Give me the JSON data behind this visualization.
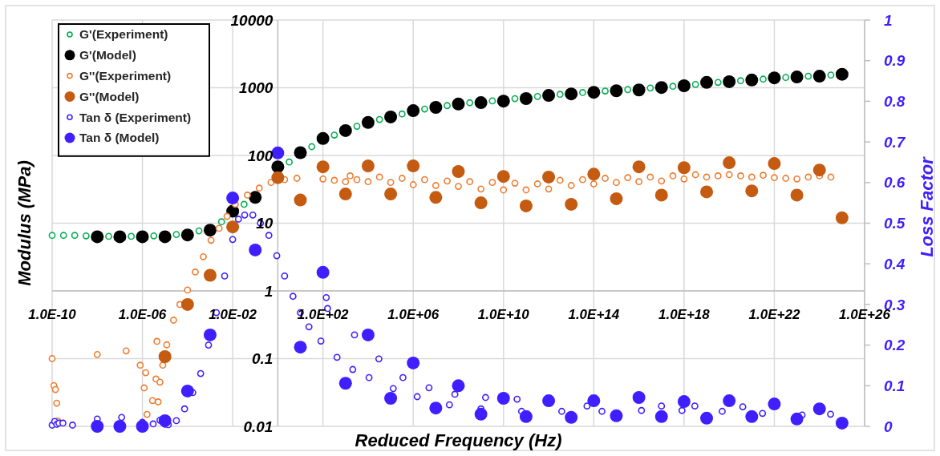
{
  "chart_data": {
    "type": "scatter",
    "xlabel": "Reduced Frequency (Hz)",
    "ylabel": "Modulus (MPa)",
    "y2label": "Loss Factor",
    "log": "xy",
    "grid": true,
    "legend": "top left",
    "marker": "circle",
    "xlim": [
      1e-10,
      1e+26
    ],
    "xticks": [
      {
        "value": 1e-10,
        "label": "1.0E-10"
      },
      {
        "value": 1e-06,
        "label": "1.0E-06"
      },
      {
        "value": 0.01,
        "label": "1.0E-02"
      },
      {
        "value": 100.0,
        "label": "1.0E+02"
      },
      {
        "value": 1000000.0,
        "label": "1.0E+06"
      },
      {
        "value": 10000000000.0,
        "label": "1.0E+10"
      },
      {
        "value": 100000000000000.0,
        "label": "1.0E+14"
      },
      {
        "value": 1e+18,
        "label": "1.0E+18"
      },
      {
        "value": 1e+22,
        "label": "1.0E+22"
      },
      {
        "value": 1e+26,
        "label": "1.0E+26"
      }
    ],
    "ylim": [
      0.01,
      10000
    ],
    "yticks": [
      0.01,
      0.1,
      1,
      10,
      100,
      1000,
      10000
    ],
    "y2lim": [
      0,
      1
    ],
    "y2ticks": [
      0,
      0.1,
      0.2,
      0.3,
      0.4,
      0.5,
      0.6,
      0.7,
      0.8,
      0.9,
      1
    ],
    "series": [
      {
        "name": "G'(Experiment)",
        "color": "#00b050",
        "x": [
          1e-10,
          3.2e-10,
          1e-09,
          3.2e-09,
          3.2e-08,
          3.2e-07,
          3.2e-06,
          3.2e-05,
          0.00032,
          0.0032,
          0.032,
          3.2,
          32,
          320,
          3200.0,
          32000.0,
          320000.0,
          3200000.0,
          32000000.0,
          320000000.0,
          3200000000.0,
          32000000000.0,
          320000000000.0,
          3200000000000.0,
          32000000000000.0,
          320000000000000.0,
          3200000000000000.0,
          3.2e+16,
          3.2e+17,
          3.2e+18,
          3.2e+19,
          3.2e+20,
          3.2e+21,
          3.2e+22,
          3.2e+23,
          3.2e+24
        ],
        "values": [
          6.6,
          6.6,
          6.6,
          6.5,
          6.4,
          6.4,
          6.5,
          6.8,
          7.7,
          10.5,
          19,
          80,
          135,
          200,
          270,
          340,
          410,
          485,
          545,
          600,
          640,
          690,
          745,
          800,
          850,
          895,
          940,
          990,
          1050,
          1120,
          1200,
          1270,
          1340,
          1420,
          1480,
          1540
        ]
      },
      {
        "name": "G'(Model)",
        "color": "#000000",
        "x": [
          1e-08,
          1e-07,
          1e-06,
          1e-05,
          0.0001,
          0.001,
          0.01,
          0.1,
          1,
          10,
          100,
          1000.0,
          10000.0,
          100000.0,
          1000000.0,
          10000000.0,
          100000000.0,
          1000000000.0,
          10000000000.0,
          100000000000.0,
          1000000000000.0,
          10000000000000.0,
          100000000000000.0,
          1000000000000000.0,
          1e+16,
          1e+17,
          1e+18,
          1e+19,
          1e+20,
          1e+21,
          1e+22,
          1e+23,
          1e+24,
          1e+25
        ],
        "values": [
          6.3,
          6.3,
          6.3,
          6.3,
          6.7,
          7.9,
          15,
          24,
          68,
          110,
          178,
          233,
          307,
          371,
          459,
          513,
          574,
          602,
          635,
          692,
          770,
          811,
          857,
          903,
          928,
          1010,
          1070,
          1200,
          1230,
          1300,
          1400,
          1440,
          1480,
          1580
        ]
      },
      {
        "name": "G''(Experiment)",
        "color": "#ed7d31",
        "x": [
          1e-10,
          1.2e-10,
          1.4e-10,
          1.6e-10,
          1.8e-10,
          1e-08,
          1.9e-07,
          8e-07,
          1.2e-06,
          1.4e-06,
          1.6e-06,
          2.8e-06,
          4e-06,
          4.4e-06,
          5e-06,
          6e-06,
          8e-06,
          1.2e-05,
          2.4e-05,
          4.6e-05,
          0.0001,
          0.00022,
          0.0005,
          0.0011,
          0.0025,
          0.0056,
          0.013,
          0.045,
          0.15,
          0.5,
          2,
          7,
          100,
          320,
          1000.0,
          1600.0,
          3200.0,
          10000.0,
          32000.0,
          100000.0,
          320000.0,
          1000000.0,
          3200000.0,
          10000000.0,
          32000000.0,
          100000000.0,
          320000000.0,
          1000000000.0,
          3200000000.0,
          10000000000.0,
          32000000000.0,
          100000000000.0,
          320000000000.0,
          1000000000000.0,
          3200000000000.0,
          10000000000000.0,
          32000000000000.0,
          100000000000000.0,
          320000000000000.0,
          1000000000000000.0,
          3200000000000000.0,
          1e+16,
          3.2e+16,
          1e+17,
          3.2e+17,
          1e+18,
          3.2e+18,
          1e+19,
          3.2e+19,
          1e+20,
          3.2e+20,
          1e+21,
          3.2e+21,
          1e+22,
          3.2e+22,
          1e+23,
          3.2e+23,
          1e+24,
          3.2e+24
        ],
        "values": [
          0.1,
          0.04,
          0.035,
          0.022,
          0.012,
          0.115,
          0.13,
          0.08,
          0.037,
          0.062,
          0.015,
          0.024,
          0.05,
          0.18,
          0.023,
          0.045,
          0.08,
          0.16,
          0.37,
          0.63,
          1.03,
          1.9,
          3.2,
          5.6,
          8.4,
          12.6,
          19,
          26,
          33,
          40,
          44,
          46,
          45,
          43,
          41,
          50,
          44,
          41,
          48,
          40,
          46,
          37,
          44,
          36,
          42,
          35,
          41,
          32,
          40,
          31,
          39,
          31,
          38,
          32,
          43,
          36,
          44,
          38,
          46,
          40,
          47,
          41,
          48,
          42,
          50,
          45,
          52,
          48,
          50,
          52,
          50,
          48,
          51,
          47,
          46,
          45,
          48,
          50,
          48
        ]
      },
      {
        "name": "G''(Model)",
        "color": "#c55a11",
        "x": [
          1e-05,
          0.0001,
          0.001,
          0.01,
          1,
          10,
          100,
          1000.0,
          10000.0,
          100000.0,
          1000000.0,
          10000000.0,
          100000000.0,
          1000000000.0,
          10000000000.0,
          100000000000.0,
          1000000000000.0,
          10000000000000.0,
          100000000000000.0,
          1000000000000000.0,
          1e+16,
          1e+17,
          1e+18,
          1e+19,
          1e+20,
          1e+21,
          1e+22,
          1e+23,
          1e+24,
          1e+25
        ],
        "values": [
          0.107,
          0.63,
          1.7,
          8.8,
          47,
          22,
          68,
          27,
          70,
          27,
          70,
          24,
          58,
          20,
          49,
          18,
          48,
          19,
          53,
          23,
          68,
          26,
          66,
          29,
          78,
          30,
          76,
          26,
          61,
          12
        ]
      },
      {
        "name": "Tan δ (Experiment)",
        "color": "#3f1fff",
        "axis": "y2",
        "x": [
          1e-10,
          1.3e-10,
          1.6e-10,
          2e-10,
          3e-10,
          8e-10,
          1e-08,
          1.2e-07,
          1e-06,
          3e-06,
          6e-06,
          1e-05,
          1.4e-05,
          3.2e-05,
          7.4e-05,
          0.00017,
          0.00038,
          0.00085,
          0.0019,
          0.0044,
          0.01,
          0.018,
          0.034,
          0.078,
          0.17,
          0.4,
          0.9,
          2,
          4.7,
          10,
          24,
          81,
          140,
          160,
          420,
          2100,
          2500,
          11000.0,
          30000.0,
          130000.0,
          350000.0,
          1500000.0,
          5000000.0,
          40000000.0,
          70000000.0,
          1000000000.0,
          1600000000.0,
          40000000000.0,
          63000000000.0,
          3800000000000.0,
          50000000000000.0,
          230000000000000.0,
          1.3e+16,
          1e+17,
          8.1e+17,
          3e+18,
          4.9e+19,
          4e+20,
          3e+21,
          1.7e+23,
          3.1e+24
        ],
        "values": [
          0.003,
          0.012,
          0.005,
          0.008,
          0.008,
          0.003,
          0.018,
          0.022,
          0.01,
          0.006,
          0.015,
          0.005,
          0.004,
          0.014,
          0.043,
          0.083,
          0.13,
          0.2,
          0.28,
          0.37,
          0.46,
          0.51,
          0.52,
          0.52,
          0.5,
          0.47,
          0.42,
          0.37,
          0.32,
          0.28,
          0.245,
          0.21,
          0.317,
          0.29,
          0.17,
          0.14,
          0.225,
          0.12,
          0.166,
          0.093,
          0.12,
          0.073,
          0.095,
          0.053,
          0.079,
          0.043,
          0.071,
          0.067,
          0.037,
          0.037,
          0.05,
          0.037,
          0.039,
          0.05,
          0.039,
          0.05,
          0.037,
          0.048,
          0.032,
          0.028,
          0.03
        ]
      },
      {
        "name": "Tan δ (Model)",
        "color": "#3f1fff",
        "axis": "y2",
        "x": [
          1e-08,
          1e-07,
          1e-06,
          1e-05,
          0.0001,
          0.001,
          0.01,
          0.1,
          1,
          10,
          100,
          1000.0,
          10000.0,
          100000.0,
          1000000.0,
          10000000.0,
          100000000.0,
          1000000000.0,
          10000000000.0,
          100000000000.0,
          1000000000000.0,
          10000000000000.0,
          100000000000000.0,
          1000000000000000.0,
          1e+16,
          1e+17,
          1e+18,
          1e+19,
          1e+20,
          1e+21,
          1e+22,
          1e+23,
          1e+24,
          1e+25
        ],
        "values": [
          0,
          0,
          0,
          0.014,
          0.087,
          0.225,
          0.562,
          0.434,
          0.673,
          0.195,
          0.379,
          0.106,
          0.225,
          0.069,
          0.156,
          0.045,
          0.1,
          0.03,
          0.069,
          0.024,
          0.063,
          0.022,
          0.063,
          0.026,
          0.071,
          0.024,
          0.061,
          0.02,
          0.063,
          0.024,
          0.055,
          0.018,
          0.043,
          0.008
        ]
      }
    ]
  }
}
